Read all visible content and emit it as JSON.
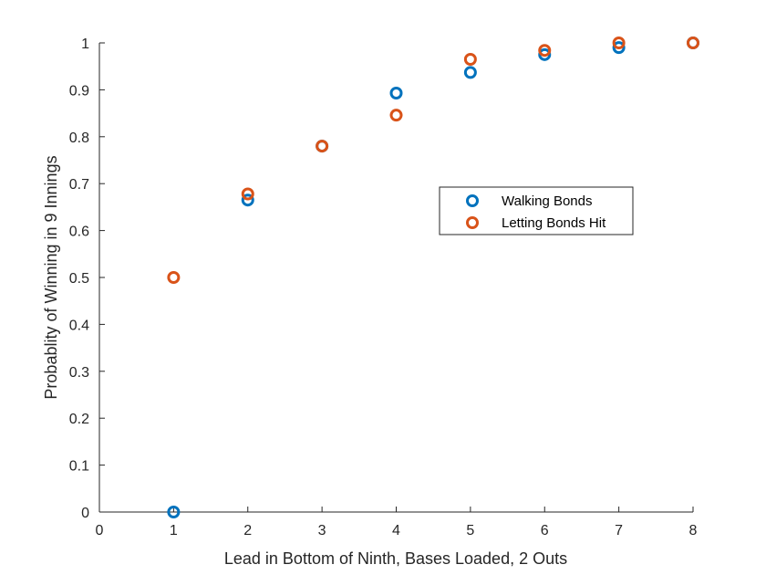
{
  "chart_data": {
    "type": "scatter",
    "xlabel": "Lead in Bottom of Ninth, Bases Loaded, 2 Outs",
    "ylabel": "Probablity of Winning in 9 Innings",
    "xlim": [
      0,
      8
    ],
    "ylim": [
      0,
      1
    ],
    "xticks": [
      "0",
      "1",
      "2",
      "3",
      "4",
      "5",
      "6",
      "7",
      "8"
    ],
    "yticks": [
      "0",
      "0.1",
      "0.2",
      "0.3",
      "0.4",
      "0.5",
      "0.6",
      "0.7",
      "0.8",
      "0.9",
      "1"
    ],
    "grid": false,
    "legend_position": "right-middle",
    "marker": "open-circle",
    "series": [
      {
        "name": "Walking Bonds",
        "color": "#0072BD",
        "x": [
          1,
          2,
          3,
          4,
          5,
          6,
          7,
          8
        ],
        "y": [
          0,
          0.665,
          0.78,
          0.893,
          0.937,
          0.975,
          0.99,
          1.0
        ]
      },
      {
        "name": "Letting Bonds Hit",
        "color": "#D95319",
        "x": [
          1,
          2,
          3,
          4,
          5,
          6,
          7,
          8
        ],
        "y": [
          0.5,
          0.678,
          0.78,
          0.846,
          0.965,
          0.984,
          1.0,
          1.0
        ]
      }
    ]
  }
}
